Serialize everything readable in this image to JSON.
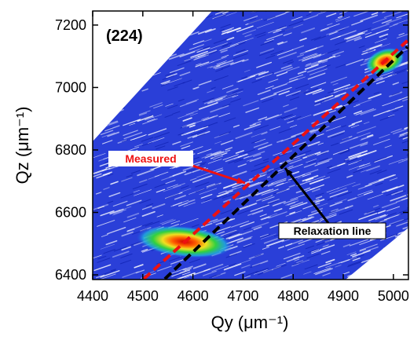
{
  "chart_data": {
    "type": "reciprocal-space-map",
    "annotation": "(224)",
    "x_label": "Qy (μm⁻¹)",
    "y_label": "Qz (μm⁻¹)",
    "xlim": [
      4400,
      5030
    ],
    "xticks": [
      4400,
      4500,
      4600,
      4700,
      4800,
      4900,
      5000
    ],
    "ylim": [
      6385,
      7245
    ],
    "yticks": [
      6400,
      6600,
      6800,
      7000,
      7200
    ],
    "peaks": [
      {
        "x": 4583,
        "y": 6506
      },
      {
        "x": 4983,
        "y": 7084
      }
    ],
    "series": [
      {
        "name": "Measured",
        "color": "#ee1111",
        "x": [
          4502,
          5028
        ],
        "y": [
          6387,
          7150
        ]
      },
      {
        "name": "Relaxation line",
        "color": "#000000",
        "x": [
          4544,
          5028
        ],
        "y": [
          6387,
          7130
        ]
      }
    ]
  }
}
